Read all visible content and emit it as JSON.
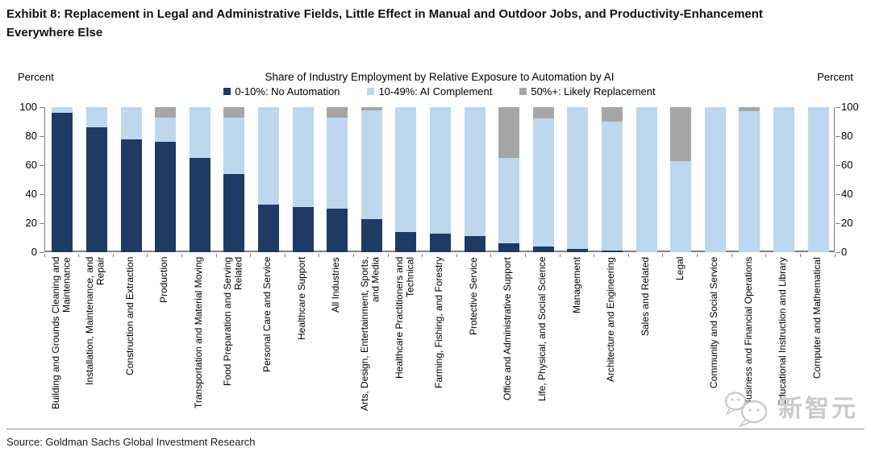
{
  "page": {
    "title": "Exhibit 8: Replacement in Legal and Administrative Fields, Little Effect in Manual and Outdoor Jobs, and Productivity-Enhancement Everywhere Else",
    "source": "Source: Goldman Sachs Global Investment Research",
    "watermark_text": "新智元"
  },
  "chart_data": {
    "type": "bar",
    "stacked": true,
    "title": "Share of Industry Employment by Relative Exposure to Automation by AI",
    "left_axis_label": "Percent",
    "right_axis_label": "Percent",
    "ylim": [
      0,
      100
    ],
    "yticks": [
      0,
      20,
      40,
      60,
      80,
      100
    ],
    "grid": false,
    "legend_position": "top-center",
    "categories": [
      "Building and Grounds Cleaning and Maintenance",
      "Installation, Maintenance, and Repair",
      "Construction and Extraction",
      "Production",
      "Transportation and Material Moving",
      "Food Preparation and Serving Related",
      "Personal Care and Service",
      "Healthcare Support",
      "All Industries",
      "Arts, Design, Entertainment, Sports, and Media",
      "Healthcare Practitioners and Technical",
      "Farming, Fishing, and Forestry",
      "Protective Service",
      "Office and Administrative Support",
      "Life, Physical, and Social Science",
      "Management",
      "Architecture and Engineering",
      "Sales and Related",
      "Legal",
      "Community and Social Service",
      "Business and Financial Operations",
      "Educational Instruction and Library",
      "Computer and Mathematical"
    ],
    "series": [
      {
        "name": "0-10%: No Automation",
        "color": "#1f3a63",
        "values": [
          96,
          86,
          78,
          76,
          65,
          54,
          33,
          31,
          30,
          23,
          14,
          13,
          11,
          6,
          4,
          2,
          1,
          0,
          0,
          0,
          0,
          0,
          0
        ]
      },
      {
        "name": "10-49%: AI Complement",
        "color": "#bdd7ee",
        "values": [
          4,
          14,
          22,
          17,
          35,
          39,
          67,
          69,
          63,
          75,
          86,
          87,
          89,
          59,
          88,
          98,
          89,
          100,
          63,
          100,
          97,
          100,
          100
        ]
      },
      {
        "name": "50%+: Likely Replacement",
        "color": "#a6a6a6",
        "values": [
          0,
          0,
          0,
          7,
          0,
          7,
          0,
          0,
          7,
          2,
          0,
          0,
          0,
          35,
          8,
          0,
          10,
          0,
          37,
          0,
          3,
          0,
          0
        ]
      }
    ]
  }
}
